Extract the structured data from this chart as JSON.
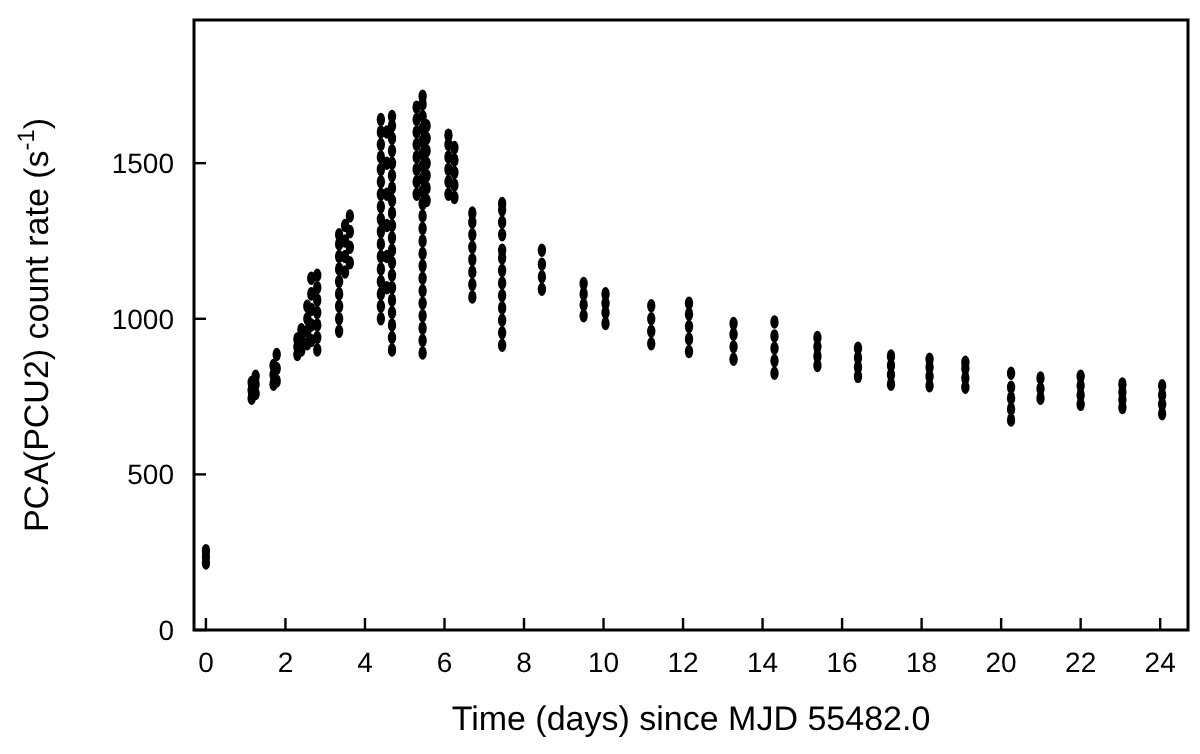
{
  "chart_data": {
    "type": "scatter",
    "xlabel": "Time (days) since MJD 55482.0",
    "ylabel": "PCA(PCU2) count rate (s$^{-1}$)",
    "xlim": [
      -0.3,
      24.7
    ],
    "ylim": [
      0,
      1960
    ],
    "xticks": [
      0,
      2,
      4,
      6,
      8,
      10,
      12,
      14,
      16,
      18,
      20,
      22,
      24
    ],
    "yticks": [
      0,
      500,
      1000,
      1500
    ],
    "marker": "circle",
    "series": [
      {
        "color": "#000000",
        "x": [
          0.0,
          0.0,
          0.0,
          1.15,
          1.15,
          1.15,
          1.25,
          1.25,
          1.25,
          1.7,
          1.7,
          1.7,
          1.78,
          1.78,
          1.78,
          2.3,
          2.3,
          2.3,
          2.4,
          2.4,
          2.4,
          2.55,
          2.55,
          2.55,
          2.55,
          2.65,
          2.65,
          2.65,
          2.65,
          2.65,
          2.8,
          2.8,
          2.8,
          2.8,
          2.8,
          2.8,
          2.8,
          3.35,
          3.35,
          3.35,
          3.35,
          3.35,
          3.35,
          3.35,
          3.35,
          3.35,
          3.5,
          3.5,
          3.5,
          3.5,
          3.62,
          3.62,
          3.62,
          3.62,
          4.4,
          4.4,
          4.4,
          4.4,
          4.4,
          4.4,
          4.4,
          4.4,
          4.4,
          4.4,
          4.4,
          4.4,
          4.4,
          4.4,
          4.4,
          4.4,
          4.4,
          4.55,
          4.55,
          4.55,
          4.55,
          4.55,
          4.55,
          4.68,
          4.68,
          4.68,
          4.68,
          4.68,
          4.68,
          4.68,
          4.68,
          4.68,
          4.68,
          4.68,
          4.68,
          4.68,
          4.68,
          4.68,
          4.68,
          4.68,
          4.68,
          4.68,
          4.68,
          5.3,
          5.3,
          5.3,
          5.3,
          5.3,
          5.3,
          5.3,
          5.3,
          5.45,
          5.45,
          5.45,
          5.45,
          5.45,
          5.45,
          5.45,
          5.45,
          5.45,
          5.45,
          5.45,
          5.45,
          5.45,
          5.45,
          5.45,
          5.45,
          5.45,
          5.45,
          5.45,
          5.45,
          5.45,
          5.45,
          5.55,
          5.55,
          5.55,
          5.55,
          5.55,
          5.55,
          5.55,
          6.1,
          6.1,
          6.1,
          6.1,
          6.1,
          6.1,
          6.25,
          6.25,
          6.25,
          6.25,
          6.25,
          6.7,
          6.7,
          6.7,
          6.7,
          6.7,
          6.7,
          6.7,
          6.7,
          7.45,
          7.45,
          7.45,
          7.45,
          7.45,
          7.45,
          7.45,
          7.45,
          7.45,
          7.45,
          7.45,
          7.45,
          7.45,
          8.45,
          8.45,
          8.45,
          8.45,
          9.5,
          9.5,
          9.5,
          9.5,
          10.05,
          10.05,
          10.05,
          10.05,
          11.2,
          11.2,
          11.2,
          11.2,
          12.15,
          12.15,
          12.15,
          12.15,
          12.15,
          13.27,
          13.27,
          13.27,
          13.27,
          14.3,
          14.3,
          14.3,
          14.3,
          14.3,
          15.38,
          15.38,
          15.38,
          15.38,
          16.4,
          16.4,
          16.4,
          16.4,
          17.23,
          17.23,
          17.23,
          17.23,
          18.2,
          18.2,
          18.2,
          18.2,
          19.1,
          19.1,
          19.1,
          19.1,
          20.25,
          20.25,
          20.25,
          20.25,
          20.25,
          20.99,
          20.99,
          20.99,
          22.0,
          22.0,
          22.0,
          22.0,
          23.05,
          23.05,
          23.05,
          23.05,
          24.05,
          24.05,
          24.05,
          24.05
        ],
        "values": [
          215,
          235,
          255,
          745,
          770,
          795,
          760,
          790,
          815,
          790,
          820,
          850,
          800,
          840,
          885,
          885,
          910,
          935,
          900,
          935,
          965,
          920,
          960,
          1000,
          1040,
          930,
          980,
          1030,
          1080,
          1130,
          900,
          940,
          980,
          1020,
          1060,
          1100,
          1140,
          960,
          1000,
          1040,
          1080,
          1120,
          1160,
          1200,
          1240,
          1270,
          1150,
          1200,
          1250,
          1300,
          1180,
          1230,
          1280,
          1330,
          1000,
          1040,
          1080,
          1120,
          1160,
          1200,
          1240,
          1280,
          1320,
          1360,
          1400,
          1440,
          1480,
          1520,
          1560,
          1600,
          1640,
          1100,
          1200,
          1300,
          1400,
          1500,
          1600,
          900,
          940,
          980,
          1020,
          1060,
          1100,
          1140,
          1180,
          1220,
          1260,
          1300,
          1340,
          1380,
          1420,
          1460,
          1500,
          1540,
          1580,
          1620,
          1650,
          1400,
          1440,
          1480,
          1520,
          1560,
          1600,
          1640,
          1680,
          890,
          930,
          970,
          1010,
          1050,
          1090,
          1130,
          1170,
          1210,
          1250,
          1290,
          1330,
          1370,
          1410,
          1450,
          1490,
          1530,
          1570,
          1610,
          1650,
          1690,
          1715,
          1380,
          1420,
          1460,
          1500,
          1540,
          1580,
          1620,
          1400,
          1440,
          1480,
          1520,
          1560,
          1590,
          1390,
          1430,
          1470,
          1510,
          1550,
          1070,
          1110,
          1150,
          1190,
          1230,
          1270,
          1310,
          1340,
          1270,
          1310,
          1350,
          1370,
          915,
          955,
          995,
          1035,
          1075,
          1115,
          1155,
          1195,
          1220,
          1095,
          1135,
          1175,
          1220,
          1010,
          1045,
          1080,
          1113,
          985,
          1020,
          1050,
          1080,
          920,
          960,
          1000,
          1042,
          895,
          935,
          975,
          1015,
          1050,
          870,
          910,
          950,
          985,
          825,
          865,
          905,
          945,
          990,
          850,
          880,
          910,
          940,
          815,
          845,
          875,
          905,
          790,
          820,
          850,
          880,
          785,
          815,
          845,
          870,
          780,
          810,
          840,
          860,
          675,
          710,
          745,
          780,
          825,
          745,
          775,
          810,
          725,
          755,
          785,
          815,
          715,
          740,
          765,
          790,
          695,
          725,
          755,
          785
        ]
      }
    ]
  }
}
